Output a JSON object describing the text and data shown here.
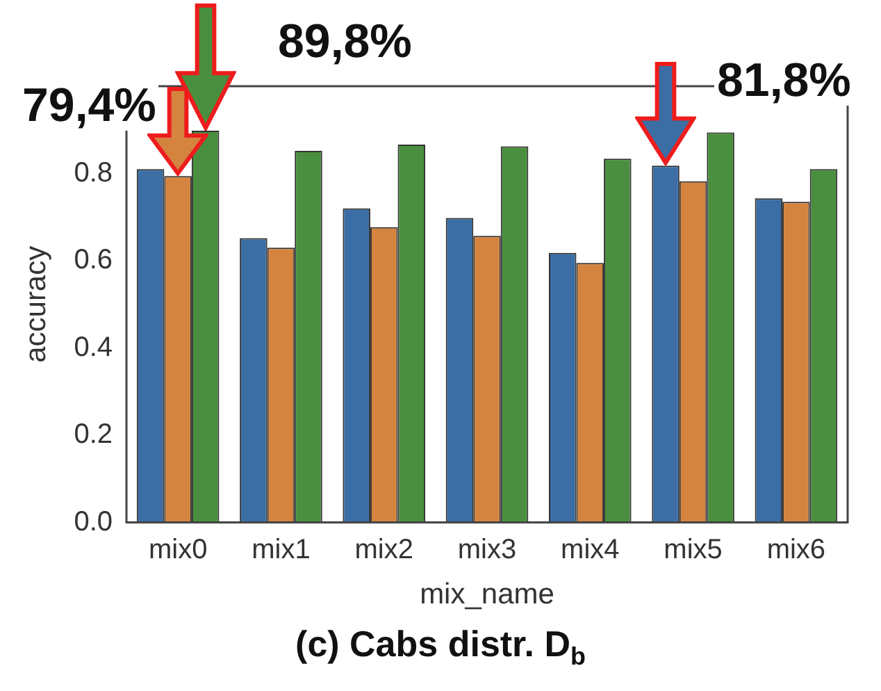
{
  "chart_data": {
    "type": "bar",
    "title": "(c) Cabs distr. D$_{b}$",
    "xlabel": "mix_name",
    "ylabel": "accuracy",
    "categories": [
      "mix0",
      "mix1",
      "mix2",
      "mix3",
      "mix4",
      "mix5",
      "mix6"
    ],
    "series": [
      {
        "color": "#3b6ea5",
        "values": [
          0.81,
          0.652,
          0.72,
          0.698,
          0.618,
          0.818,
          0.743
        ]
      },
      {
        "color": "#d58440",
        "values": [
          0.794,
          0.63,
          0.677,
          0.657,
          0.595,
          0.782,
          0.735
        ]
      },
      {
        "color": "#4a8f3f",
        "values": [
          0.898,
          0.852,
          0.866,
          0.862,
          0.834,
          0.894,
          0.81
        ]
      }
    ],
    "ylim": [
      0,
      1.0
    ],
    "yticks": [
      {
        "value": 0,
        "label": "0.0"
      },
      {
        "value": 0.2,
        "label": "0.2"
      },
      {
        "value": 0.4,
        "label": "0.4"
      },
      {
        "value": 0.6,
        "label": "0.6"
      },
      {
        "value": 0.8,
        "label": "0.8"
      }
    ],
    "grid": false,
    "legend": false,
    "annotations": [
      "79,4%",
      "89,8%",
      "81,8%"
    ]
  }
}
